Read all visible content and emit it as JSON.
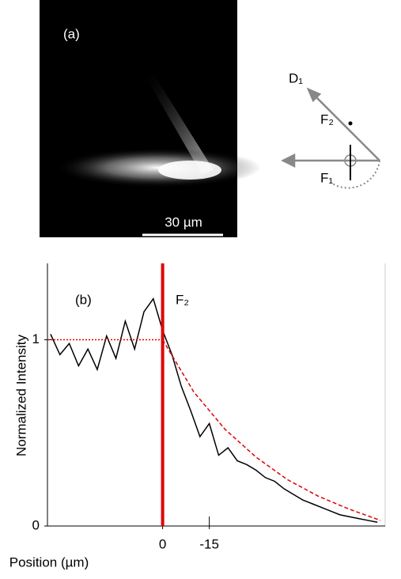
{
  "panel_a": {
    "label": "(a)",
    "scale_bar": "30 µm",
    "diagram": {
      "d1": "D₁",
      "f2": "F₂",
      "f1": "F₁"
    }
  },
  "chart_data": {
    "type": "line",
    "panel_label": "(b)",
    "annotation": "F₂",
    "ylabel": "Normalized Intensity",
    "xlabel": "Position (µm)",
    "xlim": [
      37,
      -71.5
    ],
    "ylim": [
      0,
      1.41
    ],
    "xticks": [
      0,
      -15
    ],
    "yticks": [
      0,
      1
    ],
    "vline": {
      "x": 0,
      "color": "#e00000"
    },
    "series": [
      {
        "color": "#000000",
        "style": "solid",
        "x": [
          36,
          33,
          30,
          27,
          24,
          21,
          18,
          15,
          12,
          9,
          6,
          3,
          0,
          -3,
          -6,
          -9,
          -12,
          -15,
          -18,
          -21,
          -24,
          -27,
          -30,
          -33,
          -36,
          -39,
          -42,
          -45,
          -48,
          -51,
          -54,
          -57,
          -60,
          -63,
          -66,
          -69
        ],
        "values": [
          1.03,
          0.92,
          0.98,
          0.86,
          0.95,
          0.84,
          1.02,
          0.9,
          1.1,
          0.95,
          1.15,
          1.22,
          1.05,
          0.92,
          0.75,
          0.62,
          0.48,
          0.55,
          0.38,
          0.42,
          0.35,
          0.33,
          0.3,
          0.26,
          0.24,
          0.2,
          0.17,
          0.14,
          0.12,
          0.1,
          0.08,
          0.06,
          0.05,
          0.04,
          0.03,
          0.02
        ]
      },
      {
        "color": "#e00000",
        "style": "dashed",
        "x": [
          0,
          -10,
          -20,
          -30,
          -40,
          -50,
          -60,
          -70
        ],
        "values": [
          1,
          0.72,
          0.52,
          0.37,
          0.25,
          0.16,
          0.09,
          0.03
        ]
      },
      {
        "color": "#e00000",
        "style": "dotted",
        "x": [
          37,
          0
        ],
        "values": [
          1,
          1
        ]
      }
    ]
  }
}
